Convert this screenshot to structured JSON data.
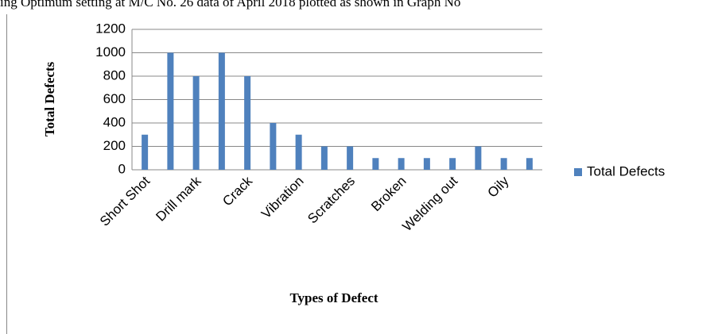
{
  "caption": "ing Optimum setting at M/C No. 26 data of April 2018 plotted as shown in Graph No",
  "chart_data": {
    "type": "bar",
    "ylabel": "Total Defects",
    "xlabel": "Types of Defect",
    "categories": [
      "Short Shot",
      null,
      "Drill mark",
      null,
      "Crack",
      null,
      "Vibration",
      null,
      "Scratches",
      null,
      "Broken",
      null,
      "Welding out",
      null,
      "Oily",
      null
    ],
    "series": [
      {
        "name": "Total Defects",
        "color": "#4f81bd",
        "values": [
          300,
          1000,
          800,
          1000,
          800,
          400,
          300,
          200,
          200,
          100,
          100,
          100,
          100,
          200,
          100,
          100
        ]
      }
    ],
    "ylim": [
      0,
      1200
    ],
    "yticks": [
      0,
      200,
      400,
      600,
      800,
      1000,
      1200
    ],
    "grid": true,
    "legend": "right"
  }
}
